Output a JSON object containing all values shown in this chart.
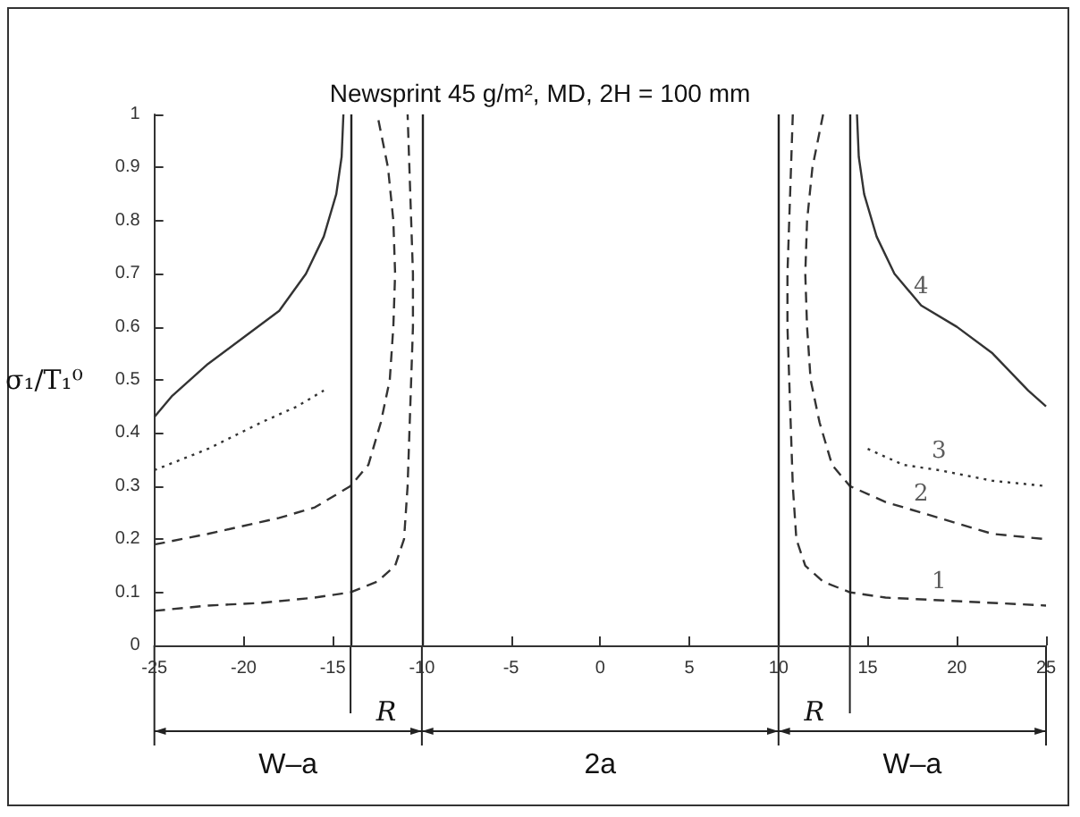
{
  "chart_data": {
    "type": "line",
    "title": "Newsprint 45 g/m², MD, 2H = 100 mm",
    "ylabel": "σ₁/T₁⁰",
    "xlim": [
      -25,
      25
    ],
    "xticks": [
      -25,
      -20,
      -15,
      -10,
      -5,
      0,
      5,
      10,
      15,
      20,
      25
    ],
    "ylim": [
      0,
      1
    ],
    "yticks": [
      0,
      0.1,
      0.2,
      0.3,
      0.4,
      0.5,
      0.6,
      0.7,
      0.8,
      0.9,
      1
    ],
    "grid": false,
    "marker": "none",
    "series": [
      {
        "name": "1",
        "color": "#333333",
        "line_style": "dashed",
        "x": [
          -25,
          -22,
          -19,
          -16,
          -14,
          -12.5,
          -11.5,
          -11,
          -10.8,
          -10.7,
          -10.6,
          -10.5,
          -10.5,
          -10.6,
          -10.7,
          -10.8,
          0,
          10.8,
          10.7,
          10.6,
          10.5,
          10.5,
          10.6,
          10.7,
          10.8,
          11,
          11.5,
          12.5,
          14,
          16,
          19,
          22,
          25
        ],
        "values": [
          0.065,
          0.075,
          0.08,
          0.09,
          0.1,
          0.12,
          0.15,
          0.2,
          0.3,
          0.4,
          0.5,
          0.6,
          0.7,
          0.8,
          0.9,
          1.0,
          null,
          1.0,
          0.9,
          0.8,
          0.7,
          0.6,
          0.5,
          0.4,
          0.3,
          0.2,
          0.15,
          0.12,
          0.1,
          0.09,
          0.085,
          0.08,
          0.075
        ]
      },
      {
        "name": "2",
        "color": "#333333",
        "line_style": "dashed",
        "x": [
          -25,
          -22,
          -18,
          -16,
          -14,
          -13,
          -12.3,
          -11.8,
          -11.6,
          -11.5,
          -11.6,
          -11.9,
          -12.2,
          -12.5,
          0,
          12.5,
          12.2,
          11.9,
          11.6,
          11.5,
          11.6,
          11.8,
          12.3,
          13,
          14,
          16,
          18,
          22,
          25
        ],
        "values": [
          0.19,
          0.21,
          0.24,
          0.26,
          0.3,
          0.34,
          0.42,
          0.5,
          0.6,
          0.7,
          0.8,
          0.9,
          0.95,
          1,
          null,
          1,
          0.95,
          0.9,
          0.8,
          0.7,
          0.6,
          0.5,
          0.42,
          0.34,
          0.3,
          0.27,
          0.25,
          0.21,
          0.2
        ]
      },
      {
        "name": "3",
        "color": "#333333",
        "line_style": "dotted",
        "x": [
          -25,
          -22,
          -19,
          -17,
          -15.5,
          0,
          15,
          17,
          19,
          22,
          25
        ],
        "values": [
          0.33,
          0.37,
          0.42,
          0.45,
          0.48,
          null,
          0.37,
          0.34,
          0.33,
          0.31,
          0.3
        ]
      },
      {
        "name": "4",
        "color": "#333333",
        "line_style": "solid",
        "x": [
          -25,
          -24,
          -22,
          -20,
          -18,
          -16.5,
          -15.5,
          -14.8,
          -14.5,
          -14.4,
          0,
          14.4,
          14.5,
          14.8,
          15.5,
          16.5,
          18,
          20,
          22,
          24,
          25
        ],
        "values": [
          0.43,
          0.47,
          0.53,
          0.58,
          0.63,
          0.7,
          0.77,
          0.85,
          0.92,
          1.0,
          null,
          1.0,
          0.92,
          0.85,
          0.77,
          0.7,
          0.64,
          0.6,
          0.55,
          0.48,
          0.45
        ]
      }
    ],
    "ref_lines": [
      {
        "axis": "x",
        "value": -14,
        "color": "#222222"
      },
      {
        "axis": "x",
        "value": -10,
        "color": "#222222"
      },
      {
        "axis": "x",
        "value": 10,
        "color": "#222222"
      },
      {
        "axis": "x",
        "value": 14,
        "color": "#222222"
      }
    ],
    "annotations": [
      "W–a",
      "R",
      "2a",
      "R",
      "W–a"
    ]
  }
}
